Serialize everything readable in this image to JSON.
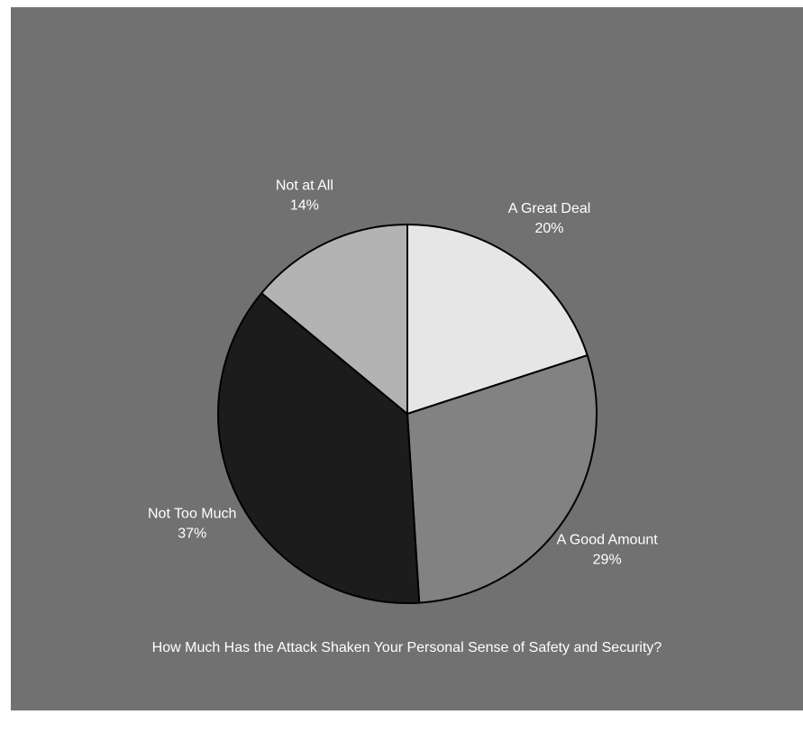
{
  "chart_data": {
    "type": "pie",
    "title": "How Much Has the Attack Shaken Your Personal Sense of Safety and Security?",
    "slices": [
      {
        "label": "A Great Deal",
        "value": 20,
        "value_label": "20%",
        "color": "#e6e6e6"
      },
      {
        "label": "A Good Amount",
        "value": 29,
        "value_label": "29%",
        "color": "#828282"
      },
      {
        "label": "Not Too Much",
        "value": 37,
        "value_label": "37%",
        "color": "#1c1c1c"
      },
      {
        "label": "Not at All",
        "value": 14,
        "value_label": "14%",
        "color": "#b3b3b3"
      }
    ],
    "start_angle": "12 o'clock",
    "direction": "clockwise",
    "background_color": "#717171"
  }
}
